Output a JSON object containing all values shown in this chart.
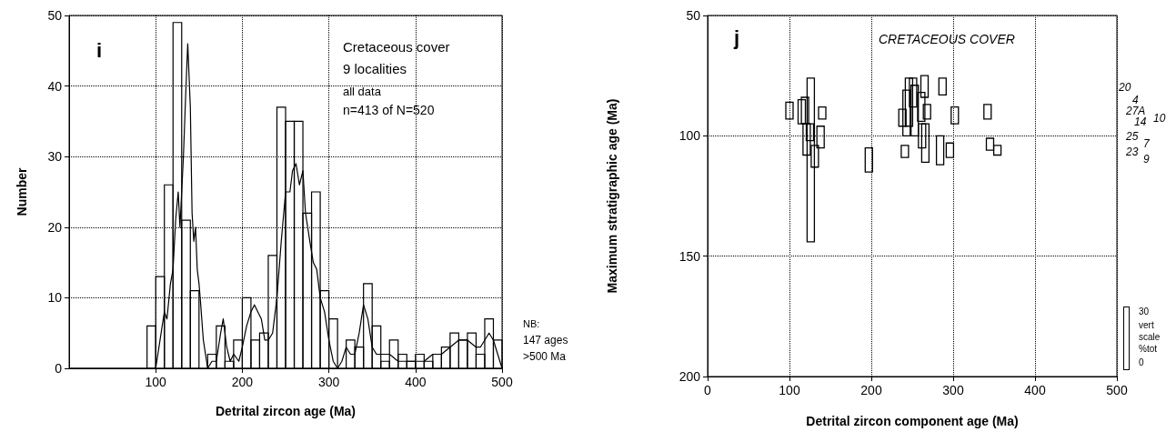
{
  "chart_data": [
    {
      "type": "histogram",
      "xlabel": "Detrital zircon age (Ma)",
      "ylabel": "Number",
      "xlim": [
        0,
        500
      ],
      "xticks": [
        100,
        200,
        300,
        400,
        500
      ],
      "ylim": [
        0,
        50
      ],
      "yticks": [
        0,
        10,
        20,
        30,
        40,
        50
      ],
      "grid": true,
      "marker": "none",
      "series": [
        {
          "color": "#000000",
          "bins": [
            90,
            100,
            110,
            120,
            130,
            140,
            150,
            160,
            170,
            180,
            190,
            200,
            210,
            220,
            230,
            240,
            250,
            260,
            270,
            280,
            290,
            300,
            310,
            320,
            330,
            340,
            350,
            360,
            370,
            380,
            390,
            400,
            410,
            420,
            430,
            440,
            450,
            460,
            470,
            480,
            490,
            500
          ],
          "values": [
            6,
            13,
            26,
            49,
            21,
            11,
            0,
            2,
            6,
            1,
            4,
            10,
            4,
            5,
            16,
            37,
            35,
            35,
            22,
            25,
            11,
            7,
            0,
            4,
            3,
            12,
            6,
            1,
            4,
            2,
            1,
            2,
            1,
            2,
            3,
            5,
            4,
            5,
            2,
            7,
            4
          ]
        },
        {
          "type": "line",
          "color": "#000000",
          "x": [
            0,
            100,
            105,
            110,
            113,
            117,
            120,
            123,
            126,
            128,
            132,
            135,
            137,
            140,
            142,
            144,
            146,
            148,
            150,
            152,
            155,
            160,
            165,
            170,
            175,
            178,
            182,
            186,
            190,
            196,
            200,
            205,
            210,
            214,
            218,
            222,
            226,
            230,
            235,
            240,
            245,
            250,
            255,
            258,
            262,
            266,
            270,
            273,
            278,
            282,
            286,
            290,
            295,
            300,
            305,
            310,
            315,
            320,
            325,
            330,
            335,
            340,
            345,
            350,
            355,
            360,
            370,
            380,
            390,
            400,
            410,
            420,
            430,
            440,
            450,
            460,
            470,
            475,
            480,
            485,
            490,
            495,
            500
          ],
          "values": [
            0,
            0,
            4,
            8,
            7,
            12,
            14,
            21,
            25,
            20,
            30,
            40,
            46,
            37,
            22,
            18,
            20,
            14,
            12,
            9,
            4,
            0,
            1,
            1,
            5,
            7,
            3,
            1,
            2,
            1,
            3,
            6,
            8,
            9,
            8,
            7,
            4,
            4,
            5,
            10,
            18,
            25,
            25,
            28,
            29,
            26,
            28,
            22,
            18,
            15,
            14,
            10,
            8,
            4,
            1,
            0,
            1,
            3,
            2,
            2,
            5,
            9,
            7,
            3,
            2,
            2,
            2,
            1,
            1,
            1,
            1,
            2,
            2,
            3,
            4,
            4,
            3,
            3,
            4,
            5,
            4,
            2,
            0
          ]
        }
      ],
      "annotations": [
        "i",
        "Cretaceous cover",
        "9 localities",
        "all data",
        "n=413 of N=520",
        "NB:",
        "147 ages",
        ">500 Ma"
      ]
    },
    {
      "type": "bar",
      "xlabel": "Detrital zircon component age (Ma)",
      "ylabel": "Maximum stratigraphic age (Ma)",
      "xlim": [
        0,
        500
      ],
      "xticks": [
        0,
        100,
        200,
        300,
        400,
        500
      ],
      "ylim": [
        200,
        50
      ],
      "yticks": [
        50,
        100,
        150,
        200
      ],
      "grid": true,
      "color": "#000000",
      "x": [
        100,
        115,
        119,
        121,
        125,
        126,
        131,
        138,
        140,
        197,
        238,
        241,
        243,
        246,
        251,
        253,
        261,
        262,
        265,
        266,
        268,
        284,
        287,
        296,
        302,
        342,
        345,
        354
      ],
      "base": [
        86,
        85,
        84,
        95,
        95,
        76,
        104,
        96,
        88,
        105,
        89,
        104,
        81,
        76,
        76,
        79,
        82,
        95,
        75,
        95,
        87,
        100,
        76,
        103,
        88,
        87,
        101,
        104
      ],
      "values": [
        7,
        10,
        11,
        13,
        7,
        68,
        9,
        9,
        5,
        10,
        7,
        5,
        19,
        20,
        12,
        21,
        12,
        10,
        9,
        16,
        6,
        12,
        7,
        6,
        7,
        6,
        5,
        4
      ],
      "annotations": [
        "j",
        "CRETACEOUS COVER",
        "20",
        "4",
        "27A",
        "14",
        "10",
        "25",
        "7",
        "23",
        "9",
        "30",
        "vert",
        "scale",
        "%tot",
        "0"
      ]
    }
  ]
}
